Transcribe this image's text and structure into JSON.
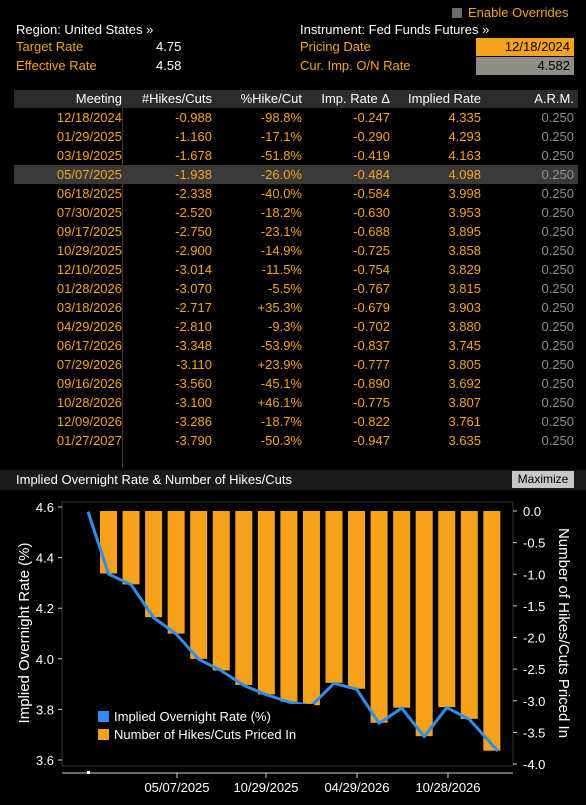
{
  "header": {
    "enable_overrides": "Enable Overrides",
    "region": "Region: United States »",
    "instrument": "Instrument: Fed Funds Futures »",
    "target_rate_label": "Target Rate",
    "target_rate_value": "4.75",
    "effective_rate_label": "Effective Rate",
    "effective_rate_value": "4.58",
    "pricing_date_label": "Pricing Date",
    "pricing_date_value": "12/18/2024",
    "cur_imp_label": "Cur. Imp. O/N Rate",
    "cur_imp_value": "4.582"
  },
  "table": {
    "columns": [
      "Meeting",
      "#Hikes/Cuts",
      "%Hike/Cut",
      "Imp. Rate Δ",
      "Implied Rate",
      "A.R.M."
    ],
    "selected_row": 3,
    "rows": [
      [
        "12/18/2024",
        "-0.988",
        "-98.8%",
        "-0.247",
        "4.335",
        "0.250"
      ],
      [
        "01/29/2025",
        "-1.160",
        "-17.1%",
        "-0.290",
        "4.293",
        "0.250"
      ],
      [
        "03/19/2025",
        "-1.678",
        "-51.8%",
        "-0.419",
        "4.163",
        "0.250"
      ],
      [
        "05/07/2025",
        "-1.938",
        "-26.0%",
        "-0.484",
        "4.098",
        "0.250"
      ],
      [
        "06/18/2025",
        "-2.338",
        "-40.0%",
        "-0.584",
        "3.998",
        "0.250"
      ],
      [
        "07/30/2025",
        "-2.520",
        "-18.2%",
        "-0.630",
        "3.953",
        "0.250"
      ],
      [
        "09/17/2025",
        "-2.750",
        "-23.1%",
        "-0.688",
        "3.895",
        "0.250"
      ],
      [
        "10/29/2025",
        "-2.900",
        "-14.9%",
        "-0.725",
        "3.858",
        "0.250"
      ],
      [
        "12/10/2025",
        "-3.014",
        "-11.5%",
        "-0.754",
        "3.829",
        "0.250"
      ],
      [
        "01/28/2026",
        "-3.070",
        "-5.5%",
        "-0.767",
        "3.815",
        "0.250"
      ],
      [
        "03/18/2026",
        "-2.717",
        "+35.3%",
        "-0.679",
        "3.903",
        "0.250"
      ],
      [
        "04/29/2026",
        "-2.810",
        "-9.3%",
        "-0.702",
        "3.880",
        "0.250"
      ],
      [
        "06/17/2026",
        "-3.348",
        "-53.9%",
        "-0.837",
        "3.745",
        "0.250"
      ],
      [
        "07/29/2026",
        "-3.110",
        "+23.9%",
        "-0.777",
        "3.805",
        "0.250"
      ],
      [
        "09/16/2026",
        "-3.560",
        "-45.1%",
        "-0.890",
        "3.692",
        "0.250"
      ],
      [
        "10/28/2026",
        "-3.100",
        "+46.1%",
        "-0.775",
        "3.807",
        "0.250"
      ],
      [
        "12/09/2026",
        "-3.286",
        "-18.7%",
        "-0.822",
        "3.761",
        "0.250"
      ],
      [
        "01/27/2027",
        "-3.790",
        "-50.3%",
        "-0.947",
        "3.635",
        "0.250"
      ]
    ]
  },
  "chart_panel": {
    "title": "Implied Overnight Rate & Number of Hikes/Cuts",
    "maximize_label": "Maximize"
  },
  "chart_data": {
    "type": "bar+line",
    "title": "Implied Overnight Rate & Number of Hikes/Cuts",
    "ylabel_left": "Implied Overnight Rate (%)",
    "ylabel_right": "Number of Hikes/Cuts Priced In",
    "ylim_left": [
      3.6,
      4.6
    ],
    "yticks_left": [
      "4.6",
      "4.4",
      "4.2",
      "4.0",
      "3.8",
      "3.6"
    ],
    "ylim_right": [
      -4.0,
      0.0
    ],
    "yticks_right": [
      "0.0",
      "-0.5",
      "-1.0",
      "-1.5",
      "-2.0",
      "-2.5",
      "-3.0",
      "-3.5",
      "-4.0"
    ],
    "xticks": [
      "05/07/2025",
      "10/29/2025",
      "04/29/2026",
      "10/28/2026"
    ],
    "legend_placement": "bottom-left",
    "colors": {
      "line": "#2e8ff0",
      "bar": "#f7a21b"
    },
    "line_series": {
      "name": "Implied Overnight Rate (%)",
      "x": [
        "12/18/2024",
        "12/18/2024",
        "01/29/2025",
        "03/19/2025",
        "05/07/2025",
        "06/18/2025",
        "07/30/2025",
        "09/17/2025",
        "10/29/2025",
        "12/10/2025",
        "01/28/2026",
        "03/18/2026",
        "04/29/2026",
        "06/17/2026",
        "07/29/2026",
        "09/16/2026",
        "10/28/2026",
        "12/09/2026",
        "01/27/2027"
      ],
      "values": [
        4.582,
        4.335,
        4.293,
        4.163,
        4.098,
        3.998,
        3.953,
        3.895,
        3.858,
        3.829,
        3.815,
        3.903,
        3.88,
        3.745,
        3.805,
        3.692,
        3.807,
        3.761,
        3.635
      ]
    },
    "bar_series": {
      "name": "Number of Hikes/Cuts Priced In",
      "x": [
        "12/18/2024",
        "01/29/2025",
        "03/19/2025",
        "05/07/2025",
        "06/18/2025",
        "07/30/2025",
        "09/17/2025",
        "10/29/2025",
        "12/10/2025",
        "01/28/2026",
        "03/18/2026",
        "04/29/2026",
        "06/17/2026",
        "07/29/2026",
        "09/16/2026",
        "10/28/2026",
        "12/09/2026",
        "01/27/2027"
      ],
      "values": [
        -0.988,
        -1.16,
        -1.678,
        -1.938,
        -2.338,
        -2.52,
        -2.75,
        -2.9,
        -3.014,
        -3.07,
        -2.717,
        -2.81,
        -3.348,
        -3.11,
        -3.56,
        -3.1,
        -3.286,
        -3.79
      ]
    }
  }
}
